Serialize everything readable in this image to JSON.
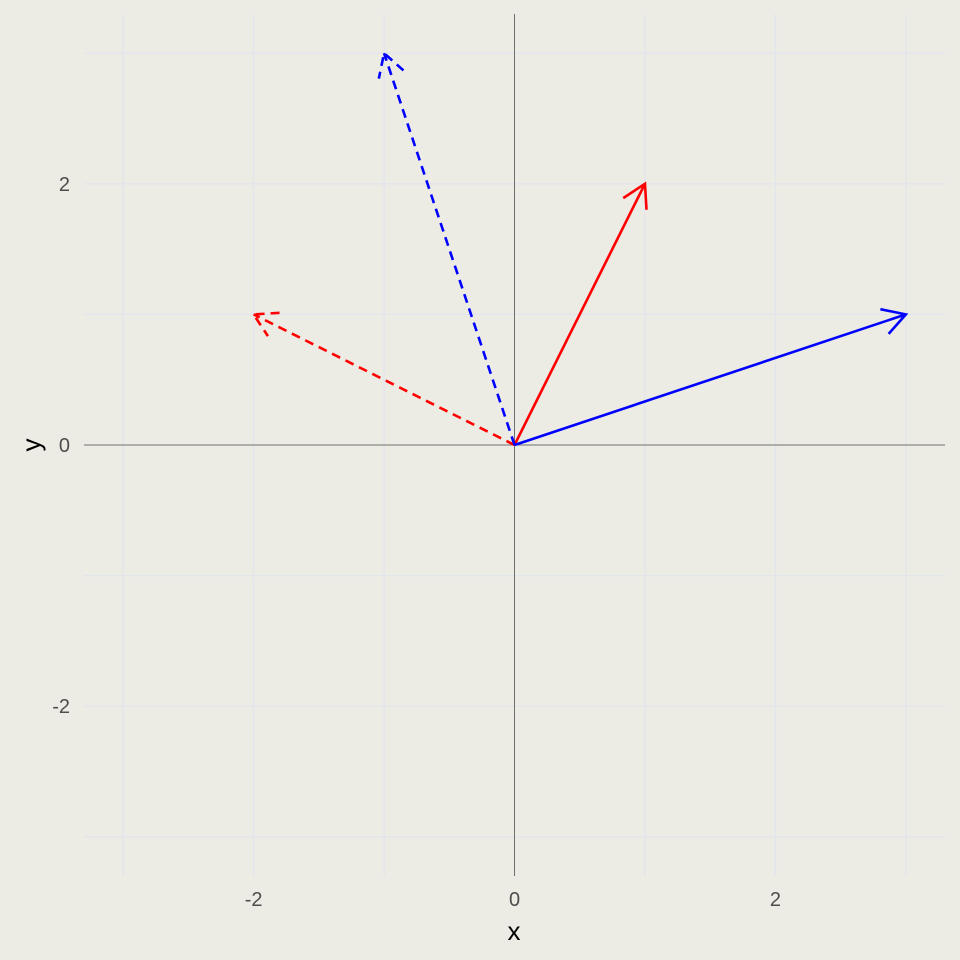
{
  "chart_data": {
    "type": "line",
    "title": "",
    "xlabel": "x",
    "ylabel": "y",
    "xlim": [
      -3.3,
      3.3
    ],
    "ylim": [
      -3.3,
      3.3
    ],
    "x_ticks": [
      -2,
      0,
      2
    ],
    "y_ticks": [
      -2,
      0,
      2
    ],
    "x_tick_labels": [
      "-2",
      "0",
      "2"
    ],
    "y_tick_labels": [
      "-2",
      "0",
      "2"
    ],
    "grid": true,
    "zero_lines": true,
    "legend": "none",
    "series": [
      {
        "start": [
          0,
          0
        ],
        "end": [
          1,
          2
        ],
        "color": "#ff0000",
        "linestyle": "solid"
      },
      {
        "start": [
          0,
          0
        ],
        "end": [
          3,
          1
        ],
        "color": "#0000ff",
        "linestyle": "solid"
      },
      {
        "start": [
          0,
          0
        ],
        "end": [
          -2,
          1
        ],
        "color": "#ff0000",
        "linestyle": "dashed"
      },
      {
        "start": [
          0,
          0
        ],
        "end": [
          -1,
          3
        ],
        "color": "#0000ff",
        "linestyle": "dashed"
      }
    ]
  },
  "colors": {
    "background": "#ecece4",
    "grid": "#e3e5ec",
    "zero_line": "#6e6e6e"
  }
}
